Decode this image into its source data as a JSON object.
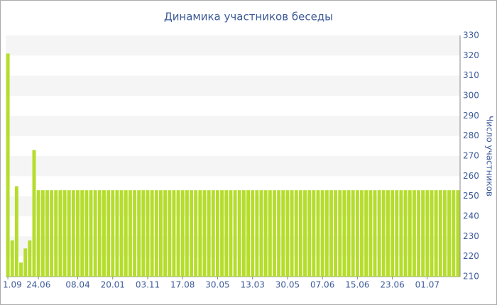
{
  "chart_data": {
    "type": "bar",
    "title": "Динамика участников беседы",
    "y_axis_label": "Число участников",
    "categories": [
      "1.09",
      null,
      null,
      null,
      null,
      null,
      null,
      "24.06",
      null,
      null,
      null,
      null,
      null,
      null,
      null,
      null,
      "08.04",
      null,
      null,
      null,
      null,
      null,
      null,
      null,
      "20.01",
      null,
      null,
      null,
      null,
      null,
      null,
      null,
      "03.11",
      null,
      null,
      null,
      null,
      null,
      null,
      null,
      "17.08",
      null,
      null,
      null,
      null,
      null,
      null,
      null,
      "30.05",
      null,
      null,
      null,
      null,
      null,
      null,
      null,
      "13.03",
      null,
      null,
      null,
      null,
      null,
      null,
      null,
      "30.05",
      null,
      null,
      null,
      null,
      null,
      null,
      null,
      "07.06",
      null,
      null,
      null,
      null,
      null,
      null,
      null,
      "15.06",
      null,
      null,
      null,
      null,
      null,
      null,
      null,
      "23.06",
      null,
      null,
      null,
      null,
      null,
      null,
      null,
      "01.07",
      null,
      null,
      null,
      null,
      null,
      null,
      null
    ],
    "values": [
      321,
      228,
      255,
      217,
      224,
      228,
      273,
      253,
      253,
      253,
      253,
      253,
      253,
      253,
      253,
      253,
      253,
      253,
      253,
      253,
      253,
      253,
      253,
      253,
      253,
      253,
      253,
      253,
      253,
      253,
      253,
      253,
      253,
      253,
      253,
      253,
      253,
      253,
      253,
      253,
      253,
      253,
      253,
      253,
      253,
      253,
      253,
      253,
      253,
      253,
      253,
      253,
      253,
      253,
      253,
      253,
      253,
      253,
      253,
      253,
      253,
      253,
      253,
      253,
      253,
      253,
      253,
      253,
      253,
      253,
      253,
      253,
      253,
      253,
      253,
      253,
      253,
      253,
      253,
      253,
      253,
      253,
      253,
      253,
      253,
      253,
      253,
      253,
      253,
      253,
      253,
      253,
      253,
      253,
      253,
      253,
      253,
      253,
      253,
      253,
      253,
      253,
      253,
      253
    ],
    "color": "#b5dd2b",
    "ylim": [
      210,
      330
    ],
    "yticks": [
      210,
      220,
      230,
      240,
      250,
      260,
      270,
      280,
      290,
      300,
      310,
      320,
      330
    ],
    "grid": "bands"
  }
}
